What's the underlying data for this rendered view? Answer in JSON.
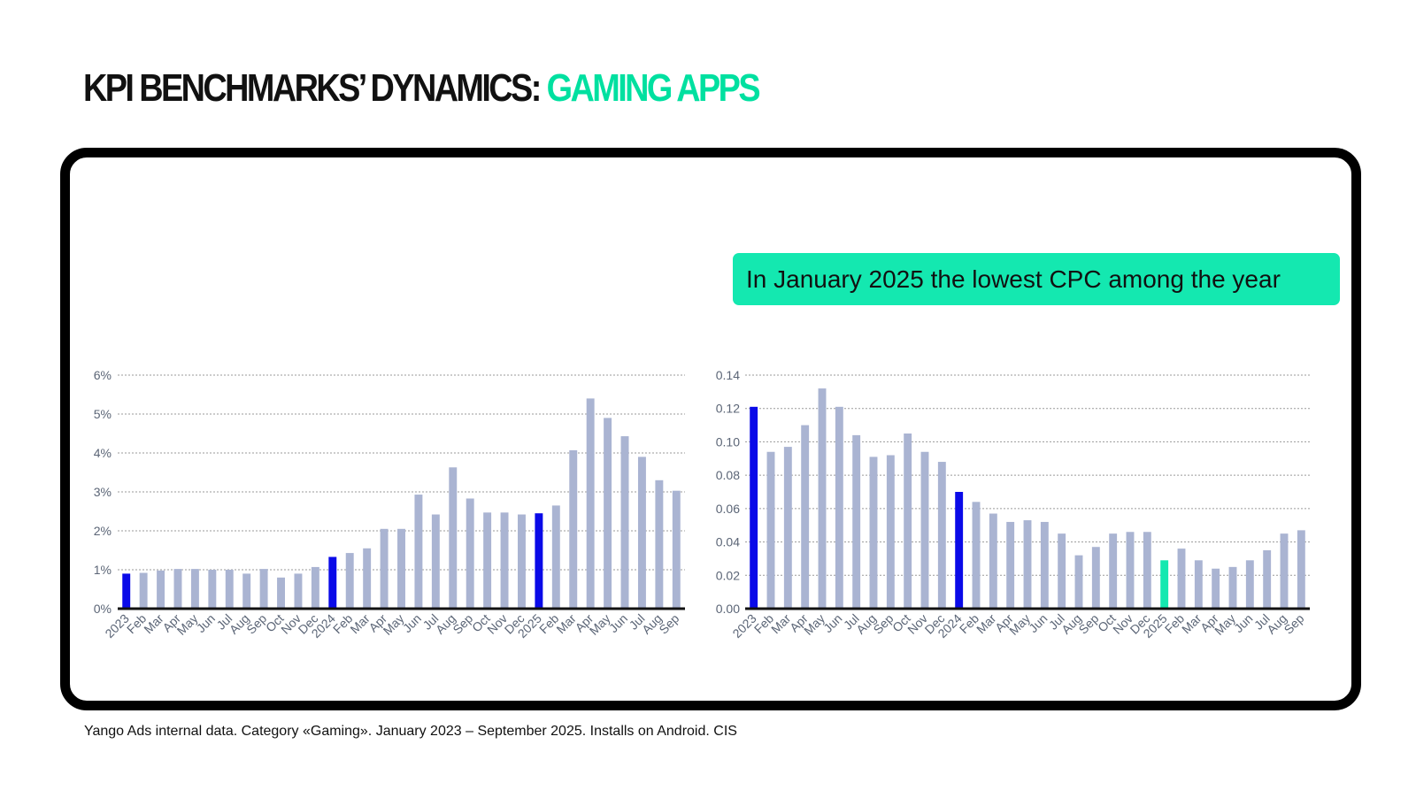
{
  "title": {
    "main": "KPI BENCHMARKS’ DYNAMICS: ",
    "accent": "GAMING APPS"
  },
  "callout": "In January 2025 the lowest CPC among the year",
  "source": "Yango Ads internal data. Category «Gaming». January 2023 – September 2025. Installs on Android. CIS",
  "colors": {
    "bar": "#aab4d2",
    "highlight": "#0a0ae8",
    "accent": "#14e8b0",
    "axis": "#111111",
    "grid": "#9a9a9a",
    "label": "#5b6576"
  },
  "chart_data": [
    {
      "type": "bar",
      "title": "",
      "categories": [
        "2023",
        "Feb",
        "Mar",
        "Apr",
        "May",
        "Jun",
        "Jul",
        "Aug",
        "Sep",
        "Oct",
        "Nov",
        "Dec",
        "2024",
        "Feb",
        "Mar",
        "Apr",
        "May",
        "Jun",
        "Jul",
        "Aug",
        "Sep",
        "Oct",
        "Nov",
        "Dec",
        "2025",
        "Feb",
        "Mar",
        "Apr",
        "May",
        "Jun",
        "Jul",
        "Aug",
        "Sep"
      ],
      "values": [
        0.9,
        0.92,
        0.98,
        1.02,
        1.02,
        1.0,
        1.0,
        0.9,
        1.02,
        0.8,
        0.9,
        1.07,
        1.33,
        1.43,
        1.55,
        2.05,
        2.05,
        2.93,
        2.42,
        3.63,
        2.83,
        2.47,
        2.47,
        2.42,
        2.45,
        2.65,
        4.07,
        5.4,
        4.9,
        4.43,
        3.9,
        3.3,
        3.03
      ],
      "highlight": [
        0,
        12,
        24
      ],
      "yticks": [
        0,
        1,
        2,
        3,
        4,
        5,
        6
      ],
      "ytick_labels": [
        "0%",
        "1%",
        "2%",
        "3%",
        "4%",
        "5%",
        "6%"
      ],
      "ylim": [
        0,
        6
      ],
      "xlabel": "",
      "ylabel": "",
      "grid": true
    },
    {
      "type": "bar",
      "title": "",
      "categories": [
        "2023",
        "Feb",
        "Mar",
        "Apr",
        "May",
        "Jun",
        "Jul",
        "Aug",
        "Sep",
        "Oct",
        "Nov",
        "Dec",
        "2024",
        "Feb",
        "Mar",
        "Apr",
        "May",
        "Jun",
        "Jul",
        "Aug",
        "Sep",
        "Oct",
        "Nov",
        "Dec",
        "2025",
        "Feb",
        "Mar",
        "Apr",
        "May",
        "Jun",
        "Jul",
        "Aug",
        "Sep"
      ],
      "values": [
        0.121,
        0.094,
        0.097,
        0.11,
        0.132,
        0.121,
        0.104,
        0.091,
        0.092,
        0.105,
        0.094,
        0.088,
        0.07,
        0.064,
        0.057,
        0.052,
        0.053,
        0.052,
        0.045,
        0.032,
        0.037,
        0.045,
        0.046,
        0.046,
        0.029,
        0.036,
        0.029,
        0.024,
        0.025,
        0.029,
        0.035,
        0.045,
        0.047
      ],
      "highlight": [
        0,
        12
      ],
      "accent": [
        24
      ],
      "yticks": [
        0,
        0.02,
        0.04,
        0.06,
        0.08,
        0.1,
        0.12,
        0.14
      ],
      "ytick_labels": [
        "0.00",
        "0.02",
        "0.04",
        "0.06",
        "0.08",
        "0.10",
        "0.12",
        "0.14"
      ],
      "ylim": [
        0,
        0.14
      ],
      "xlabel": "",
      "ylabel": "",
      "grid": true
    }
  ]
}
